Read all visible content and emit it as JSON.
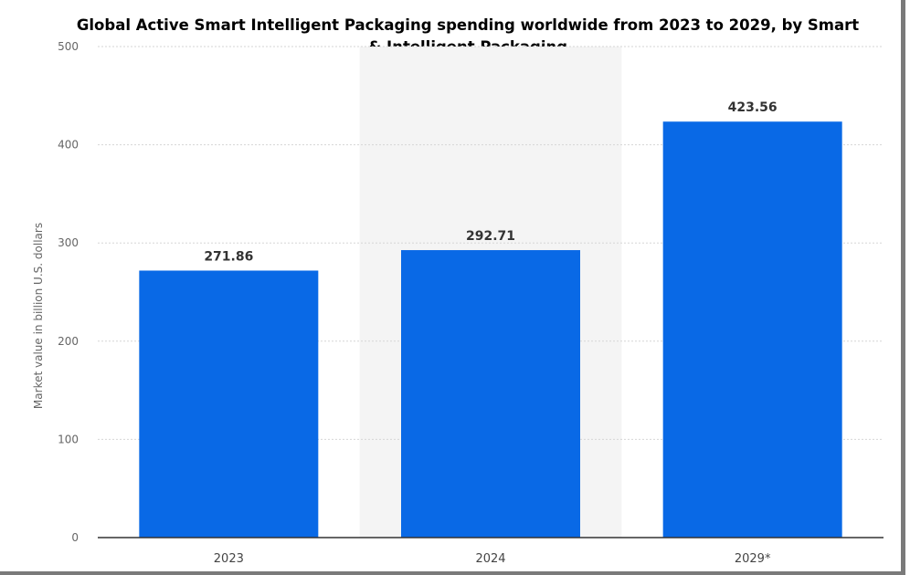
{
  "chart_data": {
    "type": "bar",
    "title": "Global Active Smart Intelligent Packaging spending worldwide from 2023 to 2029, by Smart & Intelligent Packaging",
    "ylabel": "Market value in billion U.S. dollars",
    "xlabel": "",
    "categories": [
      "2023",
      "2024",
      "2029*"
    ],
    "values": [
      271.86,
      292.71,
      423.56
    ],
    "value_labels": [
      "271.86",
      "292.71",
      "423.56"
    ],
    "ylim": [
      0,
      500
    ],
    "yticks": [
      0,
      100,
      200,
      300,
      400,
      500
    ],
    "ytick_labels": [
      "0",
      "100",
      "200",
      "300",
      "400",
      "500"
    ],
    "grid": true,
    "highlighted_category": "2024",
    "colors": {
      "bar": "#0969e6",
      "grid": "#d6d6d6",
      "highlight_band": "#f4f4f4",
      "axis": "#333333"
    }
  }
}
